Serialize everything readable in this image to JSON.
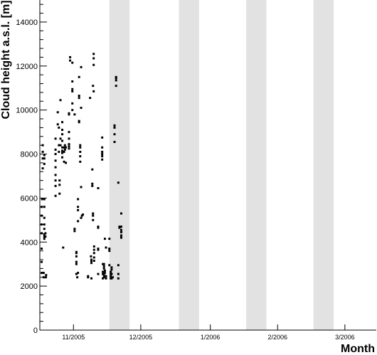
{
  "chart_data": {
    "type": "scatter",
    "xlabel": "Month",
    "ylabel": "Cloud height a.s.l. [m]",
    "ylim": [
      0,
      15000
    ],
    "yticks": [
      0,
      2000,
      4000,
      6000,
      8000,
      10000,
      12000,
      14000
    ],
    "x_unit": "days",
    "xlim": [
      0,
      150
    ],
    "categories": [
      "11/2005",
      "12/2005",
      "1/2006",
      "2/2006",
      "3/2006"
    ],
    "category_centers": [
      15,
      45,
      76,
      106,
      136
    ],
    "shaded_x_ranges": [
      [
        31,
        40
      ],
      [
        62,
        71
      ],
      [
        92,
        101
      ],
      [
        122,
        131
      ]
    ],
    "grid": false,
    "marker_color": "#000000",
    "shade_color": "#e2e2e2",
    "series": [
      {
        "points": [
          [
            0.8,
            2600
          ],
          [
            0.8,
            3100
          ],
          [
            0.8,
            3700
          ],
          [
            0.8,
            4400
          ],
          [
            0.8,
            4800
          ],
          [
            0.8,
            5200
          ],
          [
            0.8,
            5600
          ],
          [
            1.0,
            5950
          ],
          [
            1.3,
            7350
          ],
          [
            1.3,
            7800
          ],
          [
            1.3,
            8100
          ],
          [
            1.3,
            8400
          ],
          [
            1.7,
            2400
          ],
          [
            1.7,
            2600
          ],
          [
            2.0,
            4150
          ],
          [
            2.0,
            4250
          ],
          [
            2.0,
            4350
          ],
          [
            2.0,
            4600
          ],
          [
            2.0,
            4800
          ],
          [
            2.0,
            5100
          ],
          [
            2.0,
            5600
          ],
          [
            2.0,
            5950
          ],
          [
            2.0,
            7550
          ],
          [
            2.0,
            7800
          ],
          [
            2.0,
            7950
          ],
          [
            2.5,
            4250
          ],
          [
            2.5,
            4400
          ],
          [
            2.7,
            2400
          ],
          [
            2.8,
            2500
          ],
          [
            7.0,
            6100
          ],
          [
            7.0,
            6550
          ],
          [
            7.0,
            6800
          ],
          [
            7.0,
            7050
          ],
          [
            7.0,
            7400
          ],
          [
            7.0,
            7700
          ],
          [
            7.0,
            8000
          ],
          [
            7.0,
            8200
          ],
          [
            7.0,
            8700
          ],
          [
            8.0,
            9900
          ],
          [
            8.0,
            9350
          ],
          [
            8.5,
            8100
          ],
          [
            8.5,
            8400
          ],
          [
            8.5,
            9200
          ],
          [
            8.8,
            6200
          ],
          [
            8.8,
            6600
          ],
          [
            8.8,
            6800
          ],
          [
            9.2,
            10450
          ],
          [
            9.2,
            8400
          ],
          [
            9.2,
            8700
          ],
          [
            10.0,
            8150
          ],
          [
            10.0,
            8300
          ],
          [
            10.0,
            8600
          ],
          [
            10.0,
            8900
          ],
          [
            10.0,
            9100
          ],
          [
            10.0,
            9450
          ],
          [
            10.0,
            8050
          ],
          [
            10.0,
            7850
          ],
          [
            10.4,
            3750
          ],
          [
            10.8,
            7650
          ],
          [
            10.8,
            8100
          ],
          [
            10.8,
            8300
          ],
          [
            11.2,
            8200
          ],
          [
            11.2,
            8400
          ],
          [
            11.6,
            7600
          ],
          [
            11.6,
            8300
          ],
          [
            13.0,
            8250
          ],
          [
            13.0,
            8350
          ],
          [
            13.0,
            8450
          ],
          [
            13.0,
            8700
          ],
          [
            13.0,
            9000
          ],
          [
            13.0,
            9800
          ],
          [
            13.0,
            9850
          ],
          [
            13.5,
            12400
          ],
          [
            13.5,
            12250
          ],
          [
            14.5,
            10000
          ],
          [
            14.5,
            10300
          ],
          [
            14.5,
            10850
          ],
          [
            14.5,
            10950
          ],
          [
            14.5,
            11300
          ],
          [
            14.5,
            12150
          ],
          [
            15.5,
            4500
          ],
          [
            15.5,
            4600
          ],
          [
            15.5,
            9800
          ],
          [
            16.3,
            2550
          ],
          [
            16.3,
            3000
          ],
          [
            16.3,
            3100
          ],
          [
            16.3,
            3350
          ],
          [
            16.3,
            3500
          ],
          [
            16.3,
            3550
          ],
          [
            16.7,
            2400
          ],
          [
            17.0,
            2600
          ],
          [
            17.0,
            4950
          ],
          [
            17.0,
            5450
          ],
          [
            17.0,
            5600
          ],
          [
            17.0,
            5950
          ],
          [
            17.5,
            9450
          ],
          [
            17.5,
            9500
          ],
          [
            17.5,
            10550
          ],
          [
            17.5,
            10650
          ],
          [
            17.5,
            11500
          ],
          [
            18.0,
            7650
          ],
          [
            18.0,
            7900
          ],
          [
            18.0,
            8100
          ],
          [
            18.0,
            8300
          ],
          [
            18.0,
            8400
          ],
          [
            18.4,
            5100
          ],
          [
            18.4,
            6500
          ],
          [
            18.4,
            10100
          ],
          [
            18.4,
            11950
          ],
          [
            18.8,
            5200
          ],
          [
            19.2,
            5250
          ],
          [
            21.5,
            2400
          ],
          [
            21.5,
            2450
          ],
          [
            22.4,
            10550
          ],
          [
            22.8,
            3350
          ],
          [
            23.0,
            2350
          ],
          [
            23.0,
            3050
          ],
          [
            23.0,
            3150
          ],
          [
            23.0,
            3200
          ],
          [
            23.4,
            7300
          ],
          [
            23.4,
            6550
          ],
          [
            23.4,
            6650
          ],
          [
            23.7,
            5000
          ],
          [
            23.7,
            5200
          ],
          [
            23.7,
            5300
          ],
          [
            23.7,
            11100
          ],
          [
            24.0,
            12050
          ],
          [
            24.0,
            12350
          ],
          [
            24.0,
            12550
          ],
          [
            24.0,
            10850
          ],
          [
            24.2,
            3150
          ],
          [
            24.2,
            3300
          ],
          [
            24.2,
            3500
          ],
          [
            24.2,
            3650
          ],
          [
            24.2,
            3800
          ],
          [
            26.0,
            2550
          ],
          [
            26.0,
            3650
          ],
          [
            26.0,
            3700
          ],
          [
            26.0,
            4650
          ],
          [
            26.0,
            4700
          ],
          [
            26.0,
            6450
          ],
          [
            27.8,
            7750
          ],
          [
            27.8,
            7900
          ],
          [
            27.8,
            8000
          ],
          [
            27.8,
            8100
          ],
          [
            27.8,
            8300
          ],
          [
            27.8,
            8750
          ],
          [
            28.1,
            2350
          ],
          [
            28.1,
            2550
          ],
          [
            28.1,
            2650
          ],
          [
            28.1,
            3000
          ],
          [
            28.6,
            2400
          ],
          [
            28.6,
            2500
          ],
          [
            28.6,
            2800
          ],
          [
            28.6,
            2900
          ],
          [
            28.6,
            3000
          ],
          [
            29.0,
            4150
          ],
          [
            29.0,
            2600
          ],
          [
            29.0,
            2700
          ],
          [
            29.5,
            2350
          ],
          [
            29.5,
            2450
          ],
          [
            29.5,
            3750
          ],
          [
            31.0,
            2950
          ],
          [
            31.0,
            3600
          ],
          [
            31.0,
            3700
          ],
          [
            31.0,
            4150
          ],
          [
            31.6,
            2350
          ],
          [
            31.6,
            2450
          ],
          [
            31.6,
            2550
          ],
          [
            31.6,
            2650
          ],
          [
            32.0,
            2350
          ],
          [
            32.0,
            2550
          ],
          [
            32.0,
            2750
          ],
          [
            32.0,
            2850
          ],
          [
            32.5,
            2400
          ],
          [
            33.3,
            8550
          ],
          [
            33.3,
            8900
          ],
          [
            33.3,
            9200
          ],
          [
            33.3,
            9300
          ],
          [
            34.0,
            11100
          ],
          [
            34.0,
            11350
          ],
          [
            34.0,
            11450
          ],
          [
            34.0,
            11500
          ],
          [
            35.0,
            2350
          ],
          [
            35.0,
            2550
          ],
          [
            35.0,
            2950
          ],
          [
            35.0,
            6700
          ],
          [
            35.5,
            4650
          ],
          [
            35.5,
            4700
          ],
          [
            36.3,
            4200
          ],
          [
            36.3,
            4300
          ],
          [
            36.3,
            4450
          ],
          [
            36.3,
            4550
          ],
          [
            36.3,
            4700
          ],
          [
            36.3,
            5300
          ]
        ]
      }
    ]
  }
}
